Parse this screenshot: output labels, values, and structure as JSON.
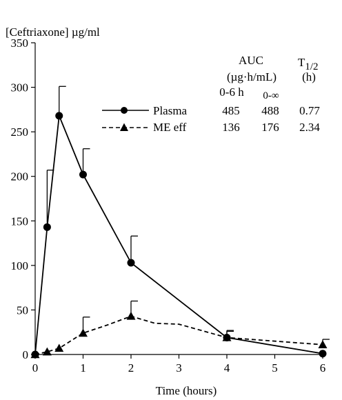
{
  "chart_data": {
    "type": "line",
    "ylabel": "[Ceftriaxone] µg/ml",
    "xlabel": "Time (hours)",
    "xlim": [
      0,
      6
    ],
    "ylim": [
      0,
      350
    ],
    "xticks": [
      "0",
      "1",
      "2",
      "3",
      "4",
      "5",
      "6"
    ],
    "yticks": [
      "0",
      "50",
      "100",
      "150",
      "200",
      "250",
      "300",
      "350"
    ],
    "grid": false,
    "legend_position": "top-right",
    "series": [
      {
        "name": "Plasma",
        "line_style": "solid",
        "marker": "circle",
        "x": [
          0,
          0.25,
          0.5,
          1,
          2,
          4,
          6
        ],
        "y": [
          0,
          143,
          268,
          202,
          103,
          19,
          1
        ],
        "error_upper": [
          null,
          207,
          301,
          231,
          133,
          27,
          null
        ]
      },
      {
        "name": "ME eff",
        "line_style": "dashed",
        "marker": "triangle",
        "x": [
          0,
          0.25,
          0.5,
          1,
          2,
          4,
          6
        ],
        "y": [
          0,
          3,
          7,
          24,
          43,
          19,
          11
        ],
        "error_upper": [
          null,
          null,
          null,
          42,
          60,
          26,
          17
        ],
        "line_path_x": [
          0,
          0.25,
          0.5,
          1,
          1.5,
          2,
          2.5,
          3,
          4,
          6
        ],
        "line_path_y": [
          0,
          3,
          7,
          24,
          33,
          43,
          35,
          34,
          19,
          11
        ]
      }
    ],
    "table": {
      "auc_header": "AUC",
      "auc_unit": "(µg·h/mL)",
      "t_half_label": "T",
      "t_half_sub": "1/2",
      "t_half_unit": "(h)",
      "col1": "0-6 h",
      "col2": "0-∞",
      "rows": [
        {
          "label": "Plasma",
          "auc_0_6": "485",
          "auc_inf": "488",
          "t_half": "0.77"
        },
        {
          "label": "ME eff",
          "auc_0_6": "136",
          "auc_inf": "176",
          "t_half": "2.34"
        }
      ]
    }
  }
}
